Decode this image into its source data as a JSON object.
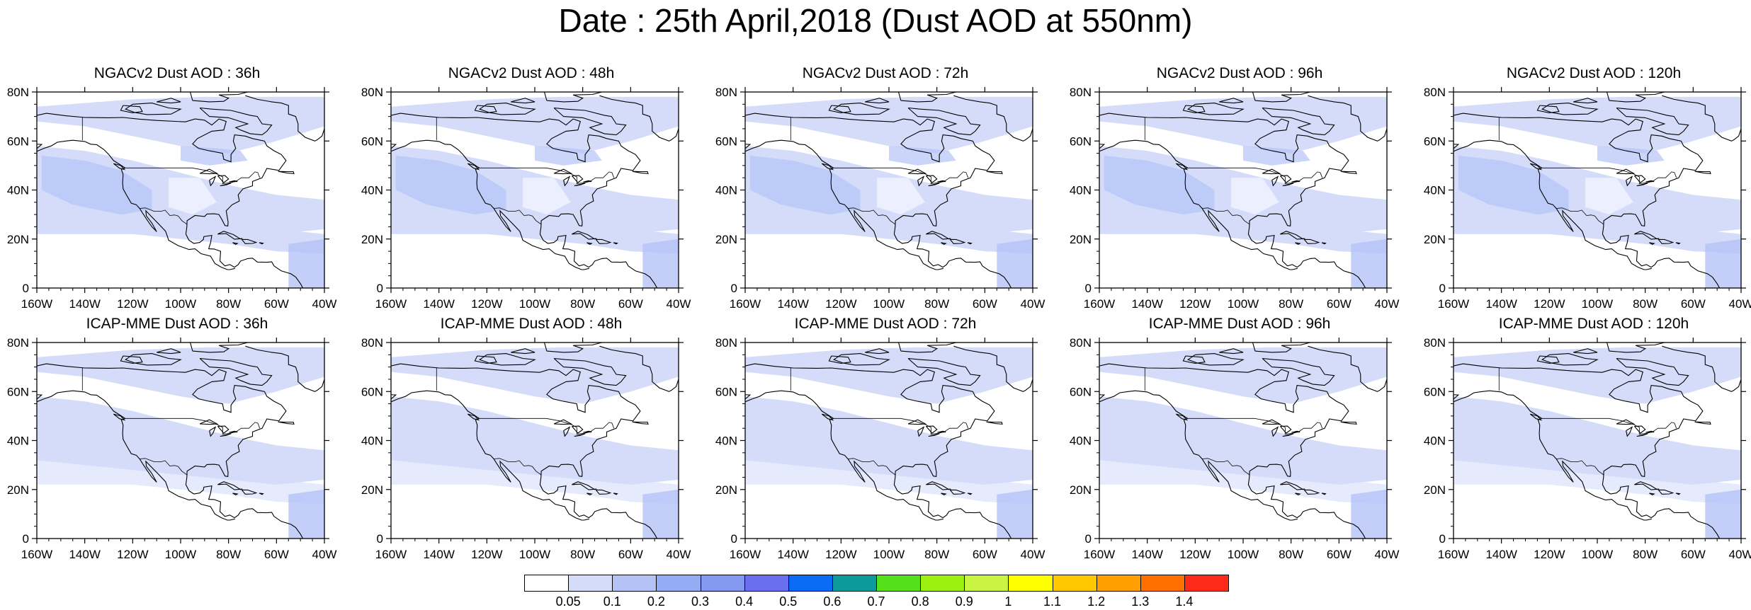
{
  "title": "Date : 25th April,2018 (Dust AOD at 550nm)",
  "panels": [
    {
      "title": "NGACv2 Dust AOD : 36h",
      "model": "NGACv2",
      "lead": "36h"
    },
    {
      "title": "NGACv2 Dust AOD : 48h",
      "model": "NGACv2",
      "lead": "48h"
    },
    {
      "title": "NGACv2 Dust AOD : 72h",
      "model": "NGACv2",
      "lead": "72h"
    },
    {
      "title": "NGACv2 Dust AOD : 96h",
      "model": "NGACv2",
      "lead": "96h"
    },
    {
      "title": "NGACv2 Dust AOD : 120h",
      "model": "NGACv2",
      "lead": "120h"
    },
    {
      "title": "ICAP-MME Dust AOD : 36h",
      "model": "ICAP-MME",
      "lead": "36h"
    },
    {
      "title": "ICAP-MME Dust AOD : 48h",
      "model": "ICAP-MME",
      "lead": "48h"
    },
    {
      "title": "ICAP-MME Dust AOD : 72h",
      "model": "ICAP-MME",
      "lead": "72h"
    },
    {
      "title": "ICAP-MME Dust AOD : 96h",
      "model": "ICAP-MME",
      "lead": "96h"
    },
    {
      "title": "ICAP-MME Dust AOD : 120h",
      "model": "ICAP-MME",
      "lead": "120h"
    }
  ],
  "axes": {
    "lon_labels": [
      "160W",
      "140W",
      "120W",
      "100W",
      "80W",
      "60W",
      "40W"
    ],
    "lat_labels": [
      "0",
      "20N",
      "40N",
      "60N",
      "80N"
    ],
    "lon_range": [
      -160,
      -40
    ],
    "lat_range": [
      0,
      80
    ]
  },
  "colorbar": {
    "labels": [
      "0.05",
      "0.1",
      "0.2",
      "0.3",
      "0.4",
      "0.5",
      "0.6",
      "0.7",
      "0.8",
      "0.9",
      "1",
      "1.1",
      "1.2",
      "1.3",
      "1.4"
    ],
    "colors": [
      "#ffffff",
      "#d4dcfa",
      "#b4c3f6",
      "#94acf4",
      "#8398ef",
      "#6a6ff0",
      "#0a6cf4",
      "#0d9a9b",
      "#55e01b",
      "#9cf10e",
      "#c9f542",
      "#ffff00",
      "#ffc800",
      "#ff9f00",
      "#ff7000",
      "#ff2a1a"
    ]
  },
  "map_colors": {
    "level_005_01": "#d4dcfa",
    "level_01_02": "#b4c3f6",
    "coast": "#000000"
  }
}
